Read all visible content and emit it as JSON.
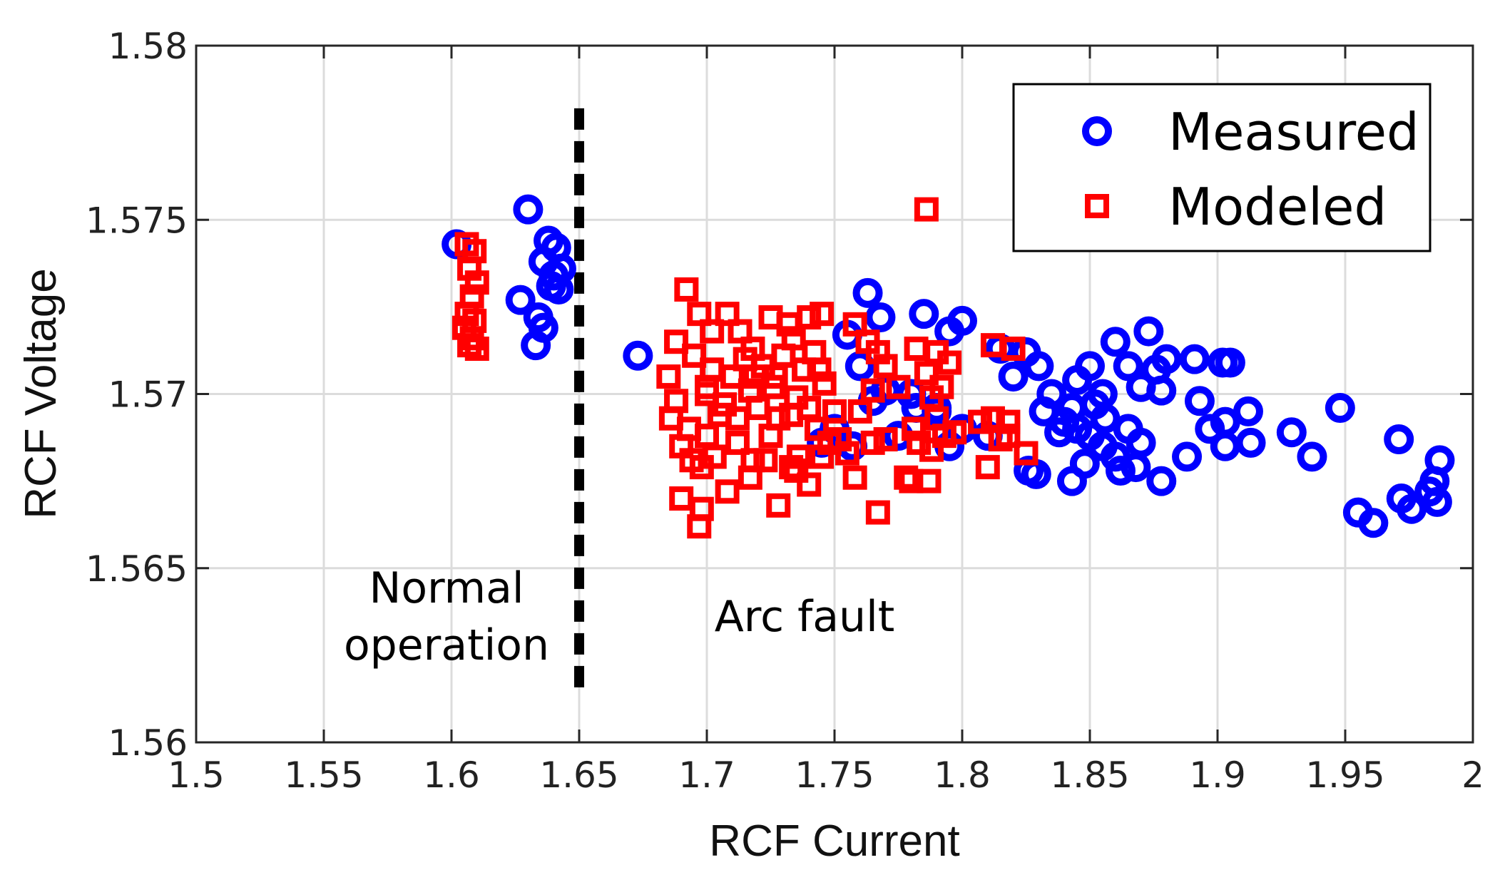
{
  "chart_data": {
    "type": "scatter",
    "title": "",
    "xlabel": "RCF Current",
    "ylabel": "RCF Voltage",
    "xlim": [
      1.5,
      2.0
    ],
    "ylim": [
      1.56,
      1.58
    ],
    "xticks": [
      1.5,
      1.55,
      1.6,
      1.65,
      1.7,
      1.75,
      1.8,
      1.85,
      1.9,
      1.95,
      2.0
    ],
    "xtick_labels": [
      "1.5",
      "1.55",
      "1.6",
      "1.65",
      "1.7",
      "1.75",
      "1.8",
      "1.85",
      "1.9",
      "1.95",
      "2"
    ],
    "yticks": [
      1.56,
      1.565,
      1.57,
      1.575,
      1.58
    ],
    "ytick_labels": [
      "1.56",
      "1.565",
      "1.57",
      "1.575",
      "1.58"
    ],
    "grid": true,
    "legend_position": "top-right",
    "threshold_line": {
      "x": 1.65,
      "y_range": [
        1.5613,
        1.5782
      ],
      "style": "dashed",
      "color": "#000000"
    },
    "annotations": [
      {
        "lines": [
          "Normal",
          "operation"
        ],
        "x": 1.6,
        "y": 1.5633
      },
      {
        "lines": [
          "Arc fault"
        ],
        "x": 1.74,
        "y": 1.5636
      }
    ],
    "series": [
      {
        "name": "Measured",
        "marker": "circle",
        "color": "#0000ff",
        "points": [
          [
            1.602,
            1.5743
          ],
          [
            1.63,
            1.5753
          ],
          [
            1.627,
            1.5727
          ],
          [
            1.634,
            1.5722
          ],
          [
            1.636,
            1.5719
          ],
          [
            1.633,
            1.5714
          ],
          [
            1.636,
            1.5738
          ],
          [
            1.638,
            1.5744
          ],
          [
            1.641,
            1.5742
          ],
          [
            1.64,
            1.5734
          ],
          [
            1.643,
            1.5736
          ],
          [
            1.642,
            1.573
          ],
          [
            1.639,
            1.5731
          ],
          [
            1.673,
            1.5711
          ],
          [
            1.763,
            1.5729
          ],
          [
            1.768,
            1.5722
          ],
          [
            1.785,
            1.5723
          ],
          [
            1.795,
            1.5718
          ],
          [
            1.8,
            1.5721
          ],
          [
            1.755,
            1.5717
          ],
          [
            1.76,
            1.5708
          ],
          [
            1.77,
            1.5701
          ],
          [
            1.78,
            1.57
          ],
          [
            1.79,
            1.5695
          ],
          [
            1.775,
            1.5688
          ],
          [
            1.765,
            1.5698
          ],
          [
            1.815,
            1.5713
          ],
          [
            1.82,
            1.5705
          ],
          [
            1.825,
            1.5712
          ],
          [
            1.83,
            1.5708
          ],
          [
            1.835,
            1.57
          ],
          [
            1.84,
            1.5692
          ],
          [
            1.845,
            1.5704
          ],
          [
            1.85,
            1.5708
          ],
          [
            1.855,
            1.57
          ],
          [
            1.86,
            1.5715
          ],
          [
            1.865,
            1.5708
          ],
          [
            1.87,
            1.5702
          ],
          [
            1.873,
            1.5718
          ],
          [
            1.876,
            1.5707
          ],
          [
            1.88,
            1.571
          ],
          [
            1.878,
            1.5701
          ],
          [
            1.845,
            1.569
          ],
          [
            1.85,
            1.5688
          ],
          [
            1.855,
            1.5685
          ],
          [
            1.86,
            1.5682
          ],
          [
            1.865,
            1.569
          ],
          [
            1.87,
            1.5686
          ],
          [
            1.868,
            1.5679
          ],
          [
            1.862,
            1.5678
          ],
          [
            1.848,
            1.568
          ],
          [
            1.843,
            1.5675
          ],
          [
            1.829,
            1.5677
          ],
          [
            1.826,
            1.5678
          ],
          [
            1.832,
            1.5695
          ],
          [
            1.838,
            1.5689
          ],
          [
            1.843,
            1.5696
          ],
          [
            1.852,
            1.5697
          ],
          [
            1.856,
            1.5693
          ],
          [
            1.878,
            1.5675
          ],
          [
            1.888,
            1.5682
          ],
          [
            1.891,
            1.571
          ],
          [
            1.893,
            1.5698
          ],
          [
            1.897,
            1.569
          ],
          [
            1.902,
            1.5709
          ],
          [
            1.905,
            1.5709
          ],
          [
            1.903,
            1.5692
          ],
          [
            1.903,
            1.5685
          ],
          [
            1.913,
            1.5686
          ],
          [
            1.912,
            1.5695
          ],
          [
            1.929,
            1.5689
          ],
          [
            1.937,
            1.5682
          ],
          [
            1.948,
            1.5696
          ],
          [
            1.955,
            1.5666
          ],
          [
            1.961,
            1.5663
          ],
          [
            1.971,
            1.5687
          ],
          [
            1.972,
            1.567
          ],
          [
            1.976,
            1.5667
          ],
          [
            1.983,
            1.5672
          ],
          [
            1.985,
            1.5675
          ],
          [
            1.987,
            1.5681
          ],
          [
            1.986,
            1.5669
          ],
          [
            1.795,
            1.5685
          ],
          [
            1.8,
            1.569
          ],
          [
            1.81,
            1.5688
          ],
          [
            1.79,
            1.5696
          ],
          [
            1.782,
            1.5696
          ],
          [
            1.75,
            1.569
          ],
          [
            1.745,
            1.5686
          ],
          [
            1.757,
            1.5685
          ]
        ]
      },
      {
        "name": "Modeled",
        "marker": "square",
        "color": "#ff0000",
        "points": [
          [
            1.606,
            1.5743
          ],
          [
            1.609,
            1.5741
          ],
          [
            1.607,
            1.5736
          ],
          [
            1.61,
            1.5732
          ],
          [
            1.608,
            1.5728
          ],
          [
            1.606,
            1.5723
          ],
          [
            1.609,
            1.5721
          ],
          [
            1.605,
            1.5719
          ],
          [
            1.608,
            1.5716
          ],
          [
            1.61,
            1.5713
          ],
          [
            1.607,
            1.5714
          ],
          [
            1.786,
            1.5753
          ],
          [
            1.692,
            1.573
          ],
          [
            1.697,
            1.5723
          ],
          [
            1.702,
            1.5718
          ],
          [
            1.708,
            1.5723
          ],
          [
            1.713,
            1.5718
          ],
          [
            1.725,
            1.5722
          ],
          [
            1.732,
            1.572
          ],
          [
            1.74,
            1.5722
          ],
          [
            1.745,
            1.5723
          ],
          [
            1.688,
            1.5715
          ],
          [
            1.685,
            1.5705
          ],
          [
            1.688,
            1.5698
          ],
          [
            1.686,
            1.5693
          ],
          [
            1.693,
            1.569
          ],
          [
            1.69,
            1.5685
          ],
          [
            1.694,
            1.5681
          ],
          [
            1.7,
            1.5688
          ],
          [
            1.705,
            1.5694
          ],
          [
            1.7,
            1.57
          ],
          [
            1.71,
            1.5705
          ],
          [
            1.715,
            1.571
          ],
          [
            1.718,
            1.5713
          ],
          [
            1.722,
            1.5708
          ],
          [
            1.726,
            1.5702
          ],
          [
            1.73,
            1.5711
          ],
          [
            1.734,
            1.5716
          ],
          [
            1.738,
            1.5707
          ],
          [
            1.742,
            1.5712
          ],
          [
            1.746,
            1.5703
          ],
          [
            1.75,
            1.5695
          ],
          [
            1.698,
            1.5679
          ],
          [
            1.703,
            1.5682
          ],
          [
            1.712,
            1.5686
          ],
          [
            1.718,
            1.5681
          ],
          [
            1.725,
            1.5688
          ],
          [
            1.733,
            1.5679
          ],
          [
            1.736,
            1.5682
          ],
          [
            1.743,
            1.569
          ],
          [
            1.748,
            1.5686
          ],
          [
            1.755,
            1.5683
          ],
          [
            1.76,
            1.5695
          ],
          [
            1.765,
            1.5701
          ],
          [
            1.758,
            1.572
          ],
          [
            1.763,
            1.5715
          ],
          [
            1.767,
            1.5712
          ],
          [
            1.77,
            1.5708
          ],
          [
            1.782,
            1.5713
          ],
          [
            1.786,
            1.5706
          ],
          [
            1.79,
            1.5712
          ],
          [
            1.788,
            1.5699
          ],
          [
            1.792,
            1.5702
          ],
          [
            1.795,
            1.5709
          ],
          [
            1.79,
            1.5693
          ],
          [
            1.793,
            1.5688
          ],
          [
            1.797,
            1.5689
          ],
          [
            1.783,
            1.5686
          ],
          [
            1.788,
            1.5684
          ],
          [
            1.778,
            1.5676
          ],
          [
            1.78,
            1.5675
          ],
          [
            1.787,
            1.5675
          ],
          [
            1.807,
            1.5692
          ],
          [
            1.812,
            1.5693
          ],
          [
            1.815,
            1.5687
          ],
          [
            1.818,
            1.5692
          ],
          [
            1.81,
            1.5679
          ],
          [
            1.818,
            1.5688
          ],
          [
            1.825,
            1.5683
          ],
          [
            1.82,
            1.5713
          ],
          [
            1.812,
            1.5714
          ],
          [
            1.758,
            1.5676
          ],
          [
            1.767,
            1.5666
          ],
          [
            1.697,
            1.5662
          ],
          [
            1.698,
            1.5667
          ],
          [
            1.69,
            1.567
          ],
          [
            1.708,
            1.5672
          ],
          [
            1.717,
            1.5676
          ],
          [
            1.723,
            1.5681
          ],
          [
            1.728,
            1.5668
          ],
          [
            1.74,
            1.5674
          ],
          [
            1.735,
            1.5678
          ],
          [
            1.745,
            1.5682
          ],
          [
            1.752,
            1.5687
          ],
          [
            1.7,
            1.5702
          ],
          [
            1.707,
            1.5697
          ],
          [
            1.712,
            1.5693
          ],
          [
            1.72,
            1.5696
          ],
          [
            1.728,
            1.5693
          ],
          [
            1.735,
            1.5699
          ],
          [
            1.74,
            1.5696
          ],
          [
            1.695,
            1.5711
          ],
          [
            1.702,
            1.5707
          ],
          [
            1.717,
            1.5701
          ],
          [
            1.744,
            1.5707
          ],
          [
            1.77,
            1.5687
          ],
          [
            1.775,
            1.5702
          ],
          [
            1.781,
            1.569
          ],
          [
            1.765,
            1.5686
          ],
          [
            1.727,
            1.5705
          ],
          [
            1.733,
            1.5694
          ],
          [
            1.719,
            1.5705
          ]
        ]
      }
    ]
  }
}
